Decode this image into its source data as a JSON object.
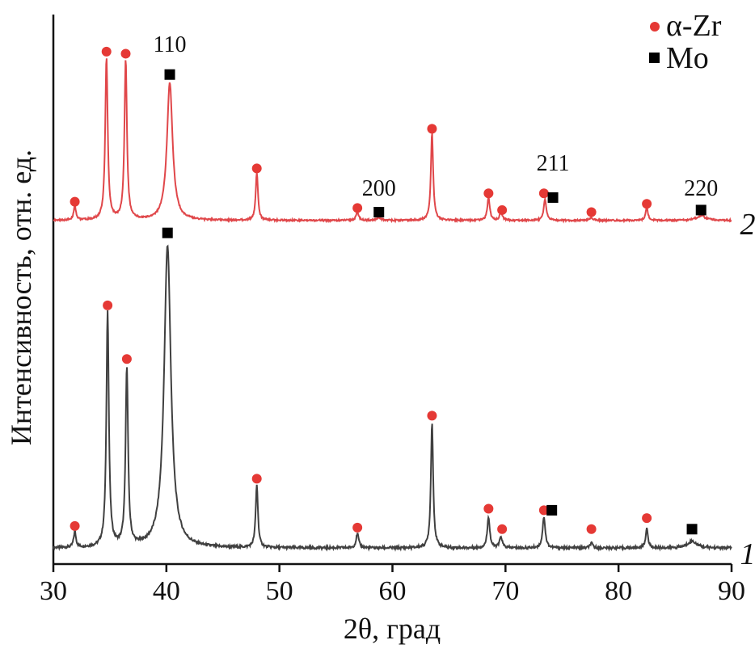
{
  "chart_data": {
    "type": "line",
    "xlabel": "2θ, град",
    "ylabel": "Интенсивность, отн. ед.",
    "xlim": [
      30,
      90
    ],
    "x_ticks": [
      30,
      40,
      50,
      60,
      70,
      80,
      90
    ],
    "grid": false,
    "legend_position": "top-right",
    "legend": [
      {
        "label": "α-Zr",
        "marker": "circle",
        "color": "#e53935"
      },
      {
        "label": "Mo",
        "marker": "square",
        "color": "#000000"
      }
    ],
    "series": [
      {
        "label": "1",
        "color": "#404040",
        "baseline": 0.02,
        "peaks": [
          {
            "x": 31.9,
            "h": 0.05,
            "w": 0.12
          },
          {
            "x": 34.8,
            "h": 0.75,
            "w": 0.13
          },
          {
            "x": 36.5,
            "h": 0.57,
            "w": 0.13
          },
          {
            "x": 40.1,
            "h": 0.96,
            "w": 0.36
          },
          {
            "x": 48.0,
            "h": 0.2,
            "w": 0.12
          },
          {
            "x": 56.9,
            "h": 0.045,
            "w": 0.14
          },
          {
            "x": 63.5,
            "h": 0.4,
            "w": 0.12
          },
          {
            "x": 68.5,
            "h": 0.1,
            "w": 0.13
          },
          {
            "x": 69.6,
            "h": 0.035,
            "w": 0.14
          },
          {
            "x": 73.4,
            "h": 0.1,
            "w": 0.14
          },
          {
            "x": 77.6,
            "h": 0.015,
            "w": 0.15
          },
          {
            "x": 82.5,
            "h": 0.06,
            "w": 0.13
          },
          {
            "x": 86.5,
            "h": 0.022,
            "w": 0.5
          }
        ],
        "alpha_zr_markers": [
          {
            "x": 31.9,
            "y": 0.09
          },
          {
            "x": 34.8,
            "y": 0.79
          },
          {
            "x": 36.5,
            "y": 0.62
          },
          {
            "x": 48.0,
            "y": 0.24
          },
          {
            "x": 56.9,
            "y": 0.085
          },
          {
            "x": 63.5,
            "y": 0.44
          },
          {
            "x": 68.5,
            "y": 0.145
          },
          {
            "x": 69.7,
            "y": 0.08
          },
          {
            "x": 73.4,
            "y": 0.14
          },
          {
            "x": 77.6,
            "y": 0.08
          },
          {
            "x": 82.5,
            "y": 0.115
          }
        ],
        "mo_markers": [
          {
            "x": 40.1,
            "y": 1.02
          },
          {
            "x": 74.1,
            "y": 0.14
          },
          {
            "x": 86.5,
            "y": 0.08
          }
        ]
      },
      {
        "label": "2",
        "color": "#e0474a",
        "baseline": 0.02,
        "peaks": [
          {
            "x": 31.9,
            "h": 0.07,
            "w": 0.12
          },
          {
            "x": 34.7,
            "h": 0.78,
            "w": 0.13
          },
          {
            "x": 36.4,
            "h": 0.77,
            "w": 0.13
          },
          {
            "x": 40.3,
            "h": 0.66,
            "w": 0.3
          },
          {
            "x": 48.0,
            "h": 0.23,
            "w": 0.12
          },
          {
            "x": 56.9,
            "h": 0.04,
            "w": 0.14
          },
          {
            "x": 58.8,
            "h": 0.01,
            "w": 0.3
          },
          {
            "x": 63.5,
            "h": 0.42,
            "w": 0.12
          },
          {
            "x": 68.5,
            "h": 0.11,
            "w": 0.13
          },
          {
            "x": 69.6,
            "h": 0.04,
            "w": 0.14
          },
          {
            "x": 73.5,
            "h": 0.1,
            "w": 0.14
          },
          {
            "x": 77.6,
            "h": 0.015,
            "w": 0.15
          },
          {
            "x": 82.5,
            "h": 0.06,
            "w": 0.13
          },
          {
            "x": 87.3,
            "h": 0.022,
            "w": 0.5
          }
        ],
        "alpha_zr_markers": [
          {
            "x": 31.9,
            "y": 0.11
          },
          {
            "x": 34.7,
            "y": 0.83
          },
          {
            "x": 36.4,
            "y": 0.82
          },
          {
            "x": 48.0,
            "y": 0.27
          },
          {
            "x": 56.9,
            "y": 0.08
          },
          {
            "x": 63.5,
            "y": 0.46
          },
          {
            "x": 68.5,
            "y": 0.15
          },
          {
            "x": 69.7,
            "y": 0.07
          },
          {
            "x": 73.4,
            "y": 0.15
          },
          {
            "x": 77.6,
            "y": 0.06
          },
          {
            "x": 82.5,
            "y": 0.1
          }
        ],
        "mo_markers": [
          {
            "x": 40.3,
            "y": 0.72
          },
          {
            "x": 58.8,
            "y": 0.06
          },
          {
            "x": 74.2,
            "y": 0.13
          },
          {
            "x": 87.3,
            "y": 0.07
          }
        ]
      }
    ],
    "hkl_labels": [
      {
        "text": "110",
        "x": 40.3,
        "series": "2",
        "y": 0.83
      },
      {
        "text": "200",
        "x": 58.8,
        "series": "2",
        "y": 0.14
      },
      {
        "text": "211",
        "x": 74.2,
        "series": "2",
        "y": 0.26
      },
      {
        "text": "220",
        "x": 87.3,
        "series": "2",
        "y": 0.14
      }
    ]
  }
}
